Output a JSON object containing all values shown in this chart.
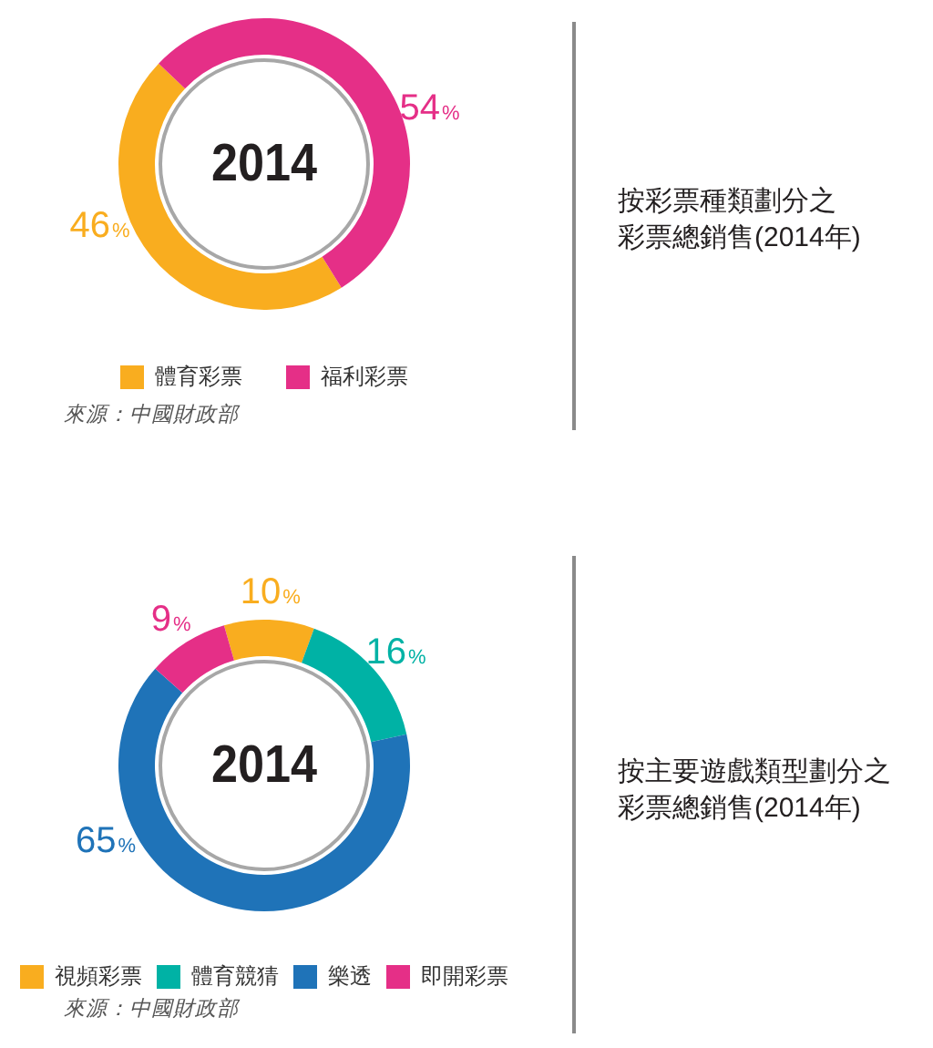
{
  "chart_data": [
    {
      "type": "donut",
      "title": "按彩票種類劃分之彩票總銷售(2014年)",
      "categories": [
        "體育彩票",
        "福利彩票"
      ],
      "values": [
        46,
        54
      ],
      "colors": [
        "#f9ad1f",
        "#e52f87"
      ],
      "value_labels": [
        "46%",
        "54%"
      ],
      "annotations": [
        "2014",
        "來源：中國財政部"
      ],
      "legend": "bottom"
    },
    {
      "type": "donut",
      "title": "按主要遊戲類型劃分之彩票總銷售(2014年)",
      "categories": [
        "視頻彩票",
        "體育競猜",
        "樂透",
        "即開彩票"
      ],
      "values": [
        10,
        16,
        65,
        9
      ],
      "colors": [
        "#f9ad1f",
        "#00b2a5",
        "#1f73b8",
        "#e52f87"
      ],
      "value_labels": [
        "10%",
        "16%",
        "65%",
        "9%"
      ],
      "annotations": [
        "2014",
        "來源：中國財政部"
      ],
      "legend": "bottom"
    }
  ]
}
